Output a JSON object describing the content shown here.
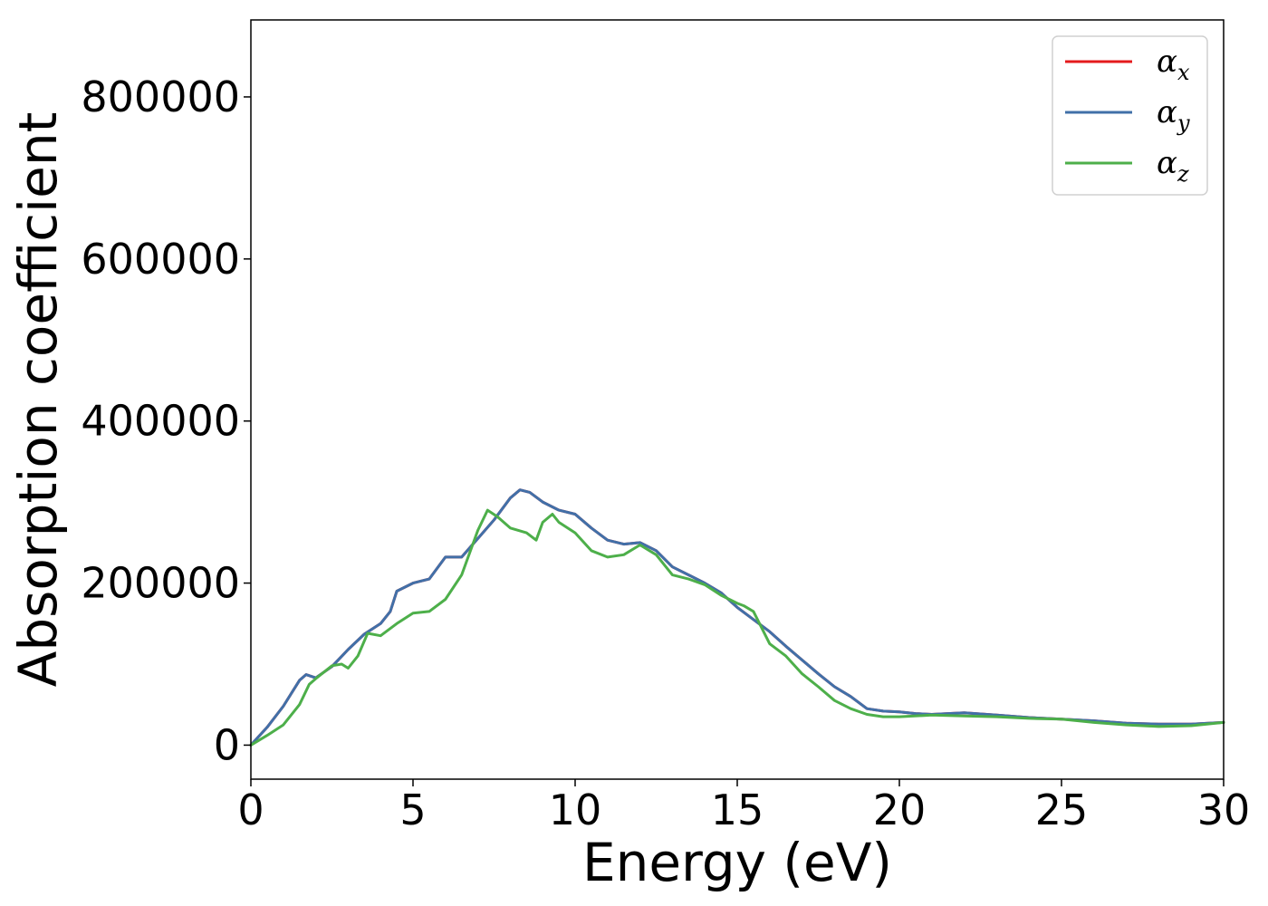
{
  "chart_data": {
    "type": "line",
    "xlabel": "Energy (eV)",
    "ylabel": "Absorption coefficient",
    "xlim": [
      0,
      30
    ],
    "ylim": [
      -42000,
      895000
    ],
    "xticks": [
      0,
      5,
      10,
      15,
      20,
      25,
      30
    ],
    "yticks": [
      0,
      200000,
      400000,
      600000,
      800000
    ],
    "grid": false,
    "legend_position": "top-right",
    "series": [
      {
        "name": "α",
        "sub": "x",
        "color": "#e41a1c",
        "x": [
          0,
          0.5,
          1,
          1.5,
          1.7,
          2,
          2.5,
          3,
          3.5,
          4,
          4.3,
          4.5,
          5,
          5.5,
          6,
          6.5,
          7,
          7.5,
          8,
          8.3,
          8.6,
          9,
          9.5,
          10,
          10.5,
          11,
          11.5,
          12,
          12.5,
          13,
          13.5,
          14,
          14.5,
          15,
          15.5,
          16,
          16.5,
          17,
          17.5,
          18,
          18.5,
          19,
          19.5,
          20,
          20.5,
          21,
          22,
          23,
          24,
          25,
          26,
          27,
          28,
          29,
          30
        ],
        "y": [
          0,
          22000,
          48000,
          80000,
          87000,
          83000,
          97000,
          118000,
          137000,
          150000,
          165000,
          190000,
          200000,
          205000,
          232000,
          232000,
          255000,
          278000,
          305000,
          315000,
          312000,
          300000,
          290000,
          285000,
          268000,
          253000,
          248000,
          250000,
          240000,
          220000,
          210000,
          200000,
          188000,
          170000,
          155000,
          140000,
          122000,
          105000,
          88000,
          72000,
          60000,
          45000,
          42000,
          41000,
          39000,
          38000,
          40000,
          37000,
          34000,
          32000,
          30000,
          27000,
          26000,
          26000,
          28000
        ]
      },
      {
        "name": "α",
        "sub": "y",
        "color": "#4170a8",
        "x": [
          0,
          0.5,
          1,
          1.5,
          1.7,
          2,
          2.5,
          3,
          3.5,
          4,
          4.3,
          4.5,
          5,
          5.5,
          6,
          6.5,
          7,
          7.5,
          8,
          8.3,
          8.6,
          9,
          9.5,
          10,
          10.5,
          11,
          11.5,
          12,
          12.5,
          13,
          13.5,
          14,
          14.5,
          15,
          15.5,
          16,
          16.5,
          17,
          17.5,
          18,
          18.5,
          19,
          19.5,
          20,
          20.5,
          21,
          22,
          23,
          24,
          25,
          26,
          27,
          28,
          29,
          30
        ],
        "y": [
          0,
          22000,
          48000,
          80000,
          87000,
          83000,
          97000,
          118000,
          137000,
          150000,
          165000,
          190000,
          200000,
          205000,
          232000,
          232000,
          255000,
          278000,
          305000,
          315000,
          312000,
          300000,
          290000,
          285000,
          268000,
          253000,
          248000,
          250000,
          240000,
          220000,
          210000,
          200000,
          188000,
          170000,
          155000,
          140000,
          122000,
          105000,
          88000,
          72000,
          60000,
          45000,
          42000,
          41000,
          39000,
          38000,
          40000,
          37000,
          34000,
          32000,
          30000,
          27000,
          26000,
          26000,
          28000
        ]
      },
      {
        "name": "α",
        "sub": "z",
        "color": "#4daf4a",
        "x": [
          0,
          0.5,
          1,
          1.5,
          1.8,
          2,
          2.5,
          2.8,
          3,
          3.3,
          3.6,
          4,
          4.5,
          5,
          5.5,
          6,
          6.5,
          7,
          7.3,
          7.6,
          8,
          8.5,
          8.8,
          9,
          9.3,
          9.5,
          10,
          10.5,
          11,
          11.5,
          12,
          12.5,
          13,
          13.5,
          14,
          14.5,
          15,
          15.2,
          15.5,
          16,
          16.5,
          17,
          17.5,
          18,
          18.5,
          19,
          19.5,
          20,
          21,
          22,
          23,
          24,
          25,
          26,
          27,
          28,
          29,
          30
        ],
        "y": [
          0,
          12000,
          25000,
          50000,
          75000,
          82000,
          98000,
          100000,
          95000,
          110000,
          138000,
          135000,
          150000,
          163000,
          165000,
          180000,
          210000,
          265000,
          290000,
          282000,
          268000,
          262000,
          253000,
          275000,
          285000,
          275000,
          262000,
          240000,
          232000,
          235000,
          247000,
          235000,
          210000,
          205000,
          198000,
          185000,
          175000,
          172000,
          165000,
          125000,
          110000,
          88000,
          72000,
          55000,
          45000,
          38000,
          35000,
          35000,
          37000,
          36000,
          35000,
          33000,
          32000,
          28000,
          25000,
          23000,
          24000,
          28000
        ]
      }
    ]
  }
}
